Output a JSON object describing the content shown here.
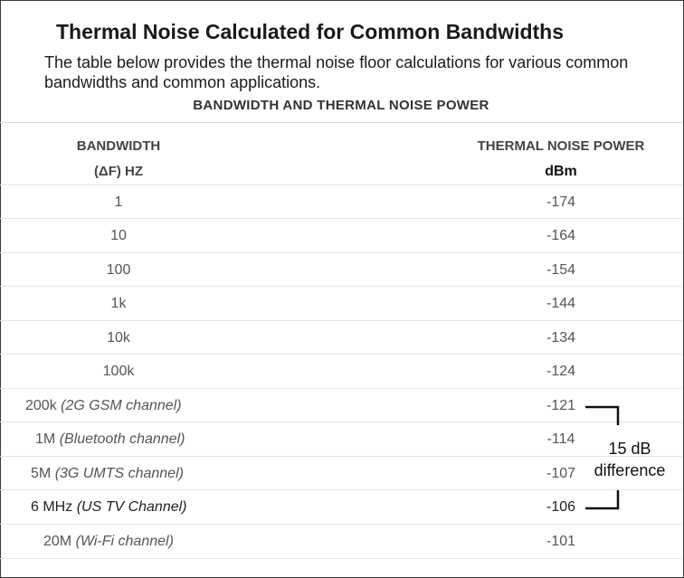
{
  "heading": "Thermal Noise Calculated for Common Bandwidths",
  "description": "The table below provides the thermal noise floor calculations for various common bandwidths and common applications.",
  "table": {
    "title": "BANDWIDTH AND THERMAL NOISE POWER",
    "col1_line1": "BANDWIDTH",
    "col1_line2": "(ΔF) HZ",
    "col2_line1": "THERMAL NOISE POWER",
    "col2_line2": "dBm",
    "rows": [
      {
        "bandwidth": "1",
        "app": "",
        "power": "-174"
      },
      {
        "bandwidth": "10",
        "app": "",
        "power": "-164"
      },
      {
        "bandwidth": "100",
        "app": "",
        "power": "-154"
      },
      {
        "bandwidth": "1k",
        "app": "",
        "power": "-144"
      },
      {
        "bandwidth": "10k",
        "app": "",
        "power": "-134"
      },
      {
        "bandwidth": "100k",
        "app": "",
        "power": "-124"
      },
      {
        "bandwidth": "200k",
        "app": "(2G GSM channel)",
        "power": "-121"
      },
      {
        "bandwidth": "1M",
        "app": "(Bluetooth channel)",
        "power": "-114"
      },
      {
        "bandwidth": "5M",
        "app": "(3G UMTS channel)",
        "power": "-107"
      },
      {
        "bandwidth": "6 MHz",
        "app": "(US TV Channel)",
        "power": "-106"
      },
      {
        "bandwidth": "20M",
        "app": "(Wi-Fi channel)",
        "power": "-101"
      }
    ]
  },
  "annotation": {
    "line1": "15 dB",
    "line2": "difference"
  }
}
